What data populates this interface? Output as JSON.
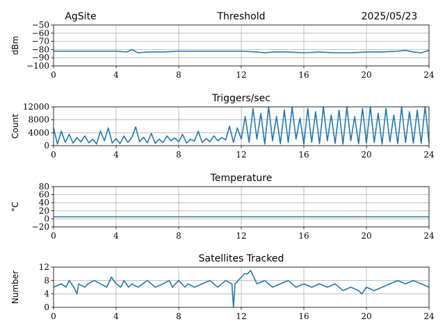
{
  "header": {
    "site": "AgSite",
    "date": "2025/05/23"
  },
  "chart_data": [
    {
      "type": "line",
      "title": "Threshold",
      "ylabel": "dBm",
      "xlim": [
        0,
        24
      ],
      "xticks": [
        0,
        4,
        8,
        12,
        16,
        20,
        24
      ],
      "ylim": [
        -100,
        -50
      ],
      "yticks": [
        -100,
        -90,
        -80,
        -70,
        -60,
        -50
      ],
      "ytick_labels": [
        "−100",
        "−90",
        "−80",
        "−70",
        "−60",
        "−50"
      ],
      "grid": true,
      "series_color": "#1f77b4",
      "x": [
        0,
        1,
        2,
        3,
        4,
        4.7,
        5.0,
        5.4,
        6,
        7,
        8,
        9,
        10,
        11,
        12,
        13,
        13.5,
        14,
        15,
        16,
        17,
        18,
        19,
        20,
        21,
        22,
        22.5,
        23,
        23.5,
        24
      ],
      "values": [
        -82,
        -82,
        -82,
        -82,
        -82,
        -83,
        -80,
        -84,
        -83,
        -83,
        -82,
        -82,
        -82,
        -82,
        -82,
        -83,
        -84,
        -83,
        -83,
        -84,
        -83,
        -84,
        -84,
        -83,
        -83,
        -82,
        -81,
        -83,
        -84,
        -81
      ]
    },
    {
      "type": "line",
      "title": "Triggers/sec",
      "ylabel": "Count",
      "xlim": [
        0,
        24
      ],
      "xticks": [
        0,
        4,
        8,
        12,
        16,
        20,
        24
      ],
      "ylim": [
        0,
        12000
      ],
      "yticks": [
        0,
        4000,
        8000,
        12000
      ],
      "ytick_labels": [
        "0",
        "4000",
        "8000",
        "12000"
      ],
      "grid": true,
      "series_color": "#1f77b4",
      "x": [
        0,
        0.25,
        0.5,
        0.75,
        1,
        1.25,
        1.5,
        1.75,
        2,
        2.25,
        2.5,
        2.75,
        3,
        3.25,
        3.5,
        3.75,
        4,
        4.25,
        4.5,
        4.75,
        5,
        5.25,
        5.5,
        5.75,
        6,
        6.25,
        6.5,
        6.75,
        7,
        7.25,
        7.5,
        7.75,
        8,
        8.25,
        8.5,
        8.75,
        9,
        9.25,
        9.5,
        9.75,
        10,
        10.25,
        10.5,
        10.75,
        11,
        11.25,
        11.5,
        11.75,
        12,
        12.25,
        12.5,
        12.75,
        13,
        13.25,
        13.5,
        13.75,
        14,
        14.25,
        14.5,
        14.75,
        15,
        15.25,
        15.5,
        15.75,
        16,
        16.25,
        16.5,
        16.75,
        17,
        17.25,
        17.5,
        17.75,
        18,
        18.25,
        18.5,
        18.75,
        19,
        19.25,
        19.5,
        19.75,
        20,
        20.25,
        20.5,
        20.75,
        21,
        21.25,
        21.5,
        21.75,
        22,
        22.25,
        22.5,
        22.75,
        23,
        23.25,
        23.5,
        23.75,
        24
      ],
      "values": [
        5500,
        500,
        4500,
        1000,
        3500,
        800,
        2500,
        1200,
        3000,
        900,
        2000,
        500,
        4500,
        1500,
        5500,
        800,
        2200,
        600,
        3000,
        1000,
        2500,
        5800,
        1200,
        2600,
        900,
        3800,
        700,
        2000,
        1000,
        3000,
        1500,
        2400,
        1200,
        3500,
        800,
        2000,
        1400,
        4500,
        1000,
        2200,
        1200,
        3000,
        1500,
        2500,
        1800,
        6000,
        1000,
        5500,
        2000,
        9000,
        1000,
        11500,
        2000,
        10000,
        500,
        12000,
        1500,
        9000,
        600,
        11000,
        1000,
        12000,
        2000,
        8500,
        500,
        11500,
        1000,
        10500,
        600,
        12000,
        1500,
        9500,
        700,
        11000,
        500,
        12000,
        1500,
        9000,
        600,
        11500,
        800,
        12000,
        1000,
        10000,
        500,
        11500,
        1200,
        9500,
        600,
        12000,
        1000,
        10500,
        800,
        11000,
        700,
        12000,
        1000
      ]
    },
    {
      "type": "line",
      "title": "Temperature",
      "ylabel": "°C",
      "xlim": [
        0,
        24
      ],
      "xticks": [
        0,
        4,
        8,
        12,
        16,
        20,
        24
      ],
      "ylim": [
        -20,
        80
      ],
      "yticks": [
        -20,
        0,
        20,
        40,
        60,
        80
      ],
      "ytick_labels": [
        "−20",
        "0",
        "20",
        "40",
        "60",
        "80"
      ],
      "grid": true,
      "series_color": "#1f77b4",
      "x": [
        0,
        24
      ],
      "values": [
        5,
        5
      ]
    },
    {
      "type": "line",
      "title": "Satellites Tracked",
      "ylabel": "Number",
      "xlim": [
        0,
        24
      ],
      "xticks": [
        0,
        4,
        8,
        12,
        16,
        20,
        24
      ],
      "ylim": [
        0,
        12
      ],
      "yticks": [
        0,
        4,
        8,
        12
      ],
      "ytick_labels": [
        "0",
        "4",
        "8",
        "12"
      ],
      "grid": true,
      "series_color": "#1f77b4",
      "x": [
        0,
        0.5,
        0.8,
        1.0,
        1.3,
        1.5,
        1.6,
        2.0,
        2.2,
        2.6,
        3.0,
        3.4,
        3.7,
        4.0,
        4.3,
        4.5,
        4.8,
        5.0,
        5.4,
        5.7,
        6.0,
        6.5,
        7.0,
        7.4,
        7.6,
        8.0,
        8.4,
        8.6,
        9.0,
        9.5,
        10.0,
        10.5,
        11.0,
        11.4,
        11.5,
        11.6,
        12.0,
        12.2,
        12.4,
        12.6,
        12.8,
        13.0,
        13.5,
        14.0,
        14.5,
        15.0,
        15.5,
        16.0,
        16.5,
        17.0,
        17.5,
        18.0,
        18.5,
        19.0,
        19.5,
        19.7,
        20.0,
        20.5,
        21.0,
        21.5,
        22.0,
        22.5,
        23.0,
        23.5,
        24.0
      ],
      "values": [
        6,
        7,
        6,
        8,
        6,
        4,
        7,
        6,
        7,
        8,
        7,
        6,
        9,
        7,
        6,
        8,
        6,
        7,
        6,
        7,
        8,
        6,
        7,
        8,
        6,
        8,
        6,
        7,
        6,
        7,
        8,
        6,
        8,
        7,
        0,
        7,
        9,
        10,
        10,
        11,
        9,
        7,
        8,
        6,
        7,
        8,
        6,
        7,
        6,
        7,
        6,
        7,
        5,
        6,
        5,
        4,
        6,
        5,
        6,
        7,
        8,
        7,
        8,
        7,
        6
      ]
    }
  ]
}
